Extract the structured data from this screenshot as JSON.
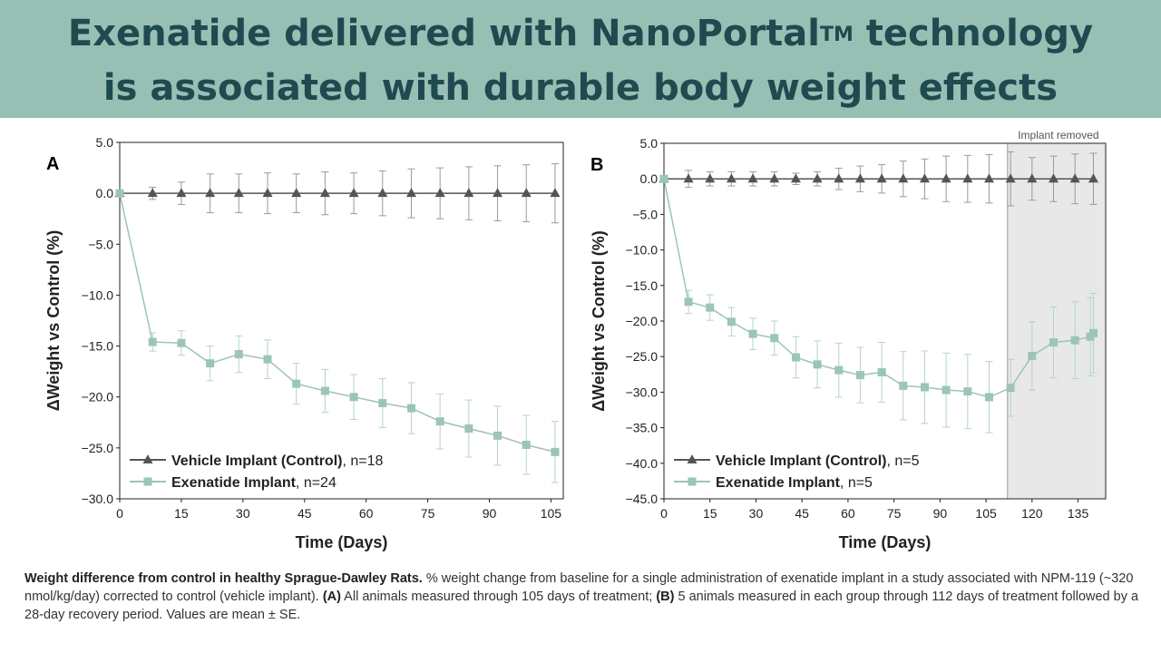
{
  "header": {
    "title_line1": "Exenatide delivered with NanoPortal",
    "title_tm": "TM",
    "title_line1_end": " technology",
    "title_line2": "is associated with durable body weight effects"
  },
  "caption": {
    "bold_lead": "Weight difference  from control in healthy Sprague-Dawley Rats.",
    "text1": " % weight change from baseline for a single administration of exenatide implant in a study associated with NPM-119 (~320 nmol/kg/day) corrected to control (vehicle implant). ",
    "a_label": "(A)",
    "text2": " All animals measured through 105 days of treatment; ",
    "b_label": "(B)",
    "text3": " 5 animals measured in each group through 112 days of treatment followed by a 28-day recovery period. Values are mean ± SE."
  },
  "colors": {
    "control": "#555555",
    "exenatide": "#9cc4b8",
    "shade": "#e8e8e8",
    "banner": "#98bfb4"
  },
  "chart_data": [
    {
      "panel": "A",
      "type": "line",
      "xlabel": "Time (Days)",
      "ylabel": "ΔWeight vs Control (%)",
      "xlim": [
        0,
        108
      ],
      "ylim": [
        -30,
        5
      ],
      "xticks": [
        0,
        15,
        30,
        45,
        60,
        75,
        90,
        105
      ],
      "xtick_labels": [
        "0",
        "15",
        "30",
        "45",
        "60",
        "75",
        "90",
        "105"
      ],
      "yticks": [
        5,
        0,
        -5,
        -10,
        -15,
        -20,
        -25,
        -30
      ],
      "ytick_labels": [
        "5.0",
        "0.0",
        "−5.0",
        "−10.0",
        "−15.0",
        "−20.0",
        "−25.0",
        "−30.0"
      ],
      "legend_position": "bottom-left",
      "series": [
        {
          "name": "Vehicle Implant (Control)",
          "n_label": ", n=18",
          "marker": "triangle",
          "color": "#555555",
          "x": [
            0,
            8,
            15,
            22,
            29,
            36,
            43,
            50,
            57,
            64,
            71,
            78,
            85,
            92,
            99,
            106
          ],
          "y": [
            0,
            0,
            0,
            0,
            0,
            0,
            0,
            0,
            0,
            0,
            0,
            0,
            0,
            0,
            0,
            0
          ],
          "err": [
            0.3,
            0.6,
            1.1,
            1.9,
            1.9,
            2.0,
            1.9,
            2.1,
            2.0,
            2.2,
            2.4,
            2.5,
            2.6,
            2.7,
            2.8,
            2.9
          ]
        },
        {
          "name": "Exenatide Implant",
          "n_label": ", n=24",
          "marker": "square",
          "color": "#9cc4b8",
          "x": [
            0,
            8,
            15,
            22,
            29,
            36,
            43,
            50,
            57,
            64,
            71,
            78,
            85,
            92,
            99,
            106
          ],
          "y": [
            0,
            -14.6,
            -14.7,
            -16.7,
            -15.8,
            -16.3,
            -18.7,
            -19.4,
            -20.0,
            -20.6,
            -21.1,
            -22.4,
            -23.1,
            -23.8,
            -24.7,
            -25.4
          ],
          "err": [
            0.3,
            0.9,
            1.2,
            1.7,
            1.8,
            1.9,
            2.0,
            2.1,
            2.2,
            2.4,
            2.5,
            2.7,
            2.8,
            2.9,
            2.9,
            3.0
          ]
        }
      ]
    },
    {
      "panel": "B",
      "type": "line",
      "xlabel": "Time (Days)",
      "ylabel": "ΔWeight vs Control (%)",
      "xlim": [
        0,
        144
      ],
      "ylim": [
        -45,
        5
      ],
      "xticks": [
        0,
        15,
        30,
        45,
        60,
        75,
        90,
        105,
        120,
        135
      ],
      "xtick_labels": [
        "0",
        "15",
        "30",
        "45",
        "60",
        "75",
        "90",
        "105",
        "120",
        "135"
      ],
      "yticks": [
        5,
        0,
        -5,
        -10,
        -15,
        -20,
        -25,
        -30,
        -35,
        -40,
        -45
      ],
      "ytick_labels": [
        "5.0",
        "0.0",
        "−5.0",
        "−10.0",
        "−15.0",
        "−20.0",
        "−25.0",
        "−30.0",
        "−35.0",
        "−40.0",
        "−45.0"
      ],
      "shaded_region": {
        "from": 112,
        "to": 144,
        "label": "Implant removed"
      },
      "legend_position": "bottom-left",
      "series": [
        {
          "name": "Vehicle Implant (Control)",
          "n_label": ", n=5",
          "marker": "triangle",
          "color": "#555555",
          "x": [
            0,
            8,
            15,
            22,
            29,
            36,
            43,
            50,
            57,
            64,
            71,
            78,
            85,
            92,
            99,
            106,
            113,
            120,
            127,
            134,
            140
          ],
          "y": [
            0,
            0,
            0,
            0,
            0,
            0,
            0,
            0,
            0,
            0,
            0,
            0,
            0,
            0,
            0,
            0,
            0,
            0,
            0,
            0,
            0
          ],
          "err": [
            0.3,
            1.2,
            1.0,
            1.0,
            1.0,
            1.0,
            0.8,
            1.0,
            1.5,
            1.8,
            2.0,
            2.5,
            2.8,
            3.2,
            3.3,
            3.4,
            3.8,
            3.0,
            3.2,
            3.5,
            3.6
          ]
        },
        {
          "name": "Exenatide Implant",
          "n_label": ", n=5",
          "marker": "square",
          "color": "#9cc4b8",
          "x": [
            0,
            8,
            15,
            22,
            29,
            36,
            43,
            50,
            57,
            64,
            71,
            78,
            85,
            92,
            99,
            106,
            113,
            120,
            127,
            134,
            139,
            140
          ],
          "y": [
            0,
            -17.3,
            -18.1,
            -20.1,
            -21.8,
            -22.4,
            -25.1,
            -26.1,
            -26.9,
            -27.6,
            -27.2,
            -29.1,
            -29.3,
            -29.7,
            -29.9,
            -30.7,
            -29.4,
            -24.9,
            -23.0,
            -22.7,
            -22.2,
            -21.7
          ],
          "err": [
            0.3,
            1.6,
            1.8,
            2.0,
            2.2,
            2.4,
            2.9,
            3.3,
            3.8,
            3.9,
            4.2,
            4.8,
            5.1,
            5.2,
            5.2,
            5.0,
            4.0,
            4.8,
            5.0,
            5.4,
            5.5,
            5.6
          ]
        }
      ]
    }
  ]
}
